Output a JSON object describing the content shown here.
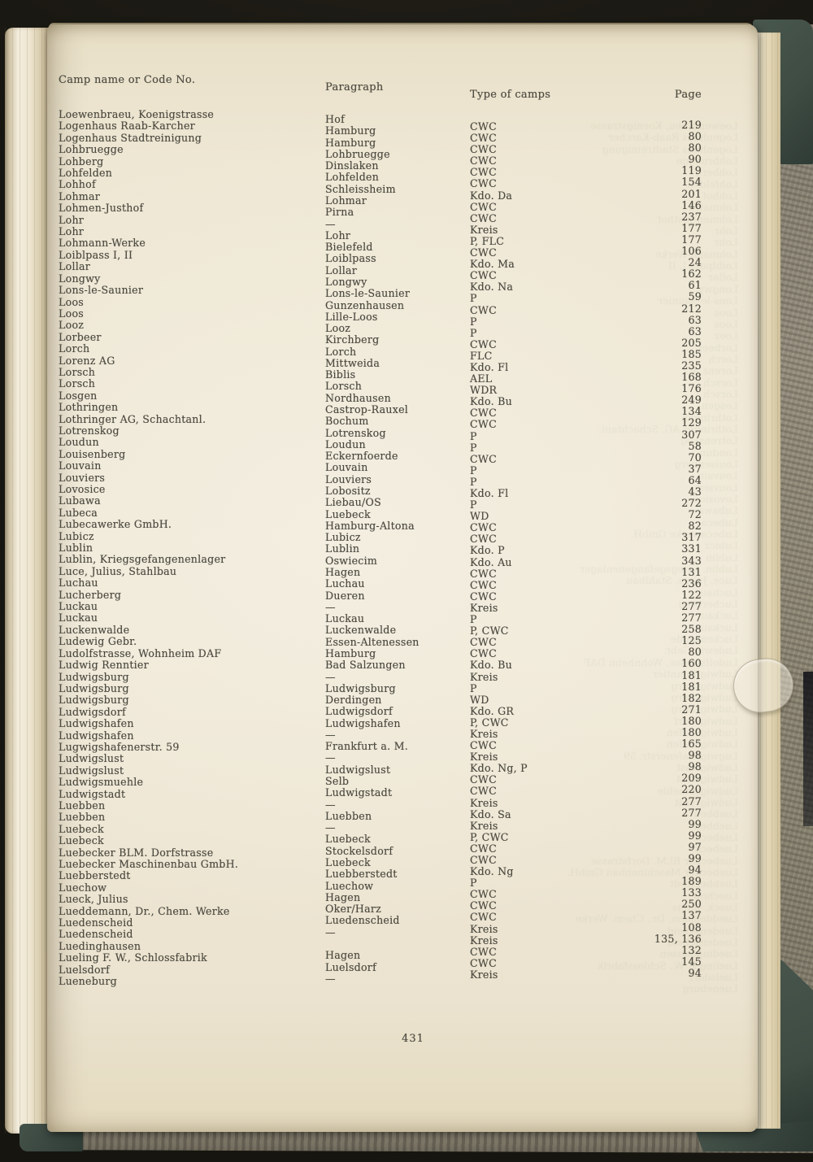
{
  "colors": {
    "background": "#17150f",
    "cover-green": "#3e4c43",
    "board-gray": "#8b8477",
    "paper": "#efe8d6",
    "ink": "#4c4a40"
  },
  "page": {
    "headers": {
      "name": "Camp name or Code No.",
      "paragraph": "Paragraph",
      "type": "Type of camps",
      "page": "Page"
    },
    "page_number": "431",
    "rows": [
      {
        "name": "Loewenbraeu, Koenigstrasse",
        "paragraph": "Hof",
        "type": "CWC",
        "page": "219"
      },
      {
        "name": "Logenhaus Raab-Karcher",
        "paragraph": "Hamburg",
        "type": "CWC",
        "page": "80"
      },
      {
        "name": "Logenhaus Stadtreinigung",
        "paragraph": "Hamburg",
        "type": "CWC",
        "page": "80"
      },
      {
        "name": "Lohbruegge",
        "paragraph": "Lohbruegge",
        "type": "CWC",
        "page": "90"
      },
      {
        "name": "Lohberg",
        "paragraph": "Dinslaken",
        "type": "CWC",
        "page": "119"
      },
      {
        "name": "Lohfelden",
        "paragraph": "Lohfelden",
        "type": "CWC",
        "page": "154"
      },
      {
        "name": "Lohhof",
        "paragraph": "Schleissheim",
        "type": "Kdo. Da",
        "page": "201"
      },
      {
        "name": "Lohmar",
        "paragraph": "Lohmar",
        "type": "CWC",
        "page": "146"
      },
      {
        "name": "Lohmen-Justhof",
        "paragraph": "Pirna",
        "type": "CWC",
        "page": "237"
      },
      {
        "name": "Lohr",
        "paragraph": "—",
        "type": "Kreis",
        "page": "177"
      },
      {
        "name": "Lohr",
        "paragraph": "Lohr",
        "type": "P, FLC",
        "page": "177"
      },
      {
        "name": "Lohmann-Werke",
        "paragraph": "Bielefeld",
        "type": "CWC",
        "page": "106"
      },
      {
        "name": "Loiblpass I, II",
        "paragraph": "Loiblpass",
        "type": "Kdo. Ma",
        "page": "24"
      },
      {
        "name": "Lollar",
        "paragraph": "Lollar",
        "type": "CWC",
        "page": "162"
      },
      {
        "name": "Longwy",
        "paragraph": "Longwy",
        "type": "Kdo. Na",
        "page": "61"
      },
      {
        "name": "Lons-le-Saunier",
        "paragraph": "Lons-le-Saunier",
        "type": "P",
        "page": "59"
      },
      {
        "name": "Loos",
        "paragraph": "Gunzenhausen",
        "type": "CWC",
        "page": "212"
      },
      {
        "name": "Loos",
        "paragraph": "Lille-Loos",
        "type": "P",
        "page": "63"
      },
      {
        "name": "Looz",
        "paragraph": "Looz",
        "type": "P",
        "page": "63"
      },
      {
        "name": "Lorbeer",
        "paragraph": "Kirchberg",
        "type": "CWC",
        "page": "205"
      },
      {
        "name": "Lorch",
        "paragraph": "Lorch",
        "type": "FLC",
        "page": "185"
      },
      {
        "name": "Lorenz AG",
        "paragraph": "Mittweida",
        "type": "Kdo. Fl",
        "page": "235"
      },
      {
        "name": "Lorsch",
        "paragraph": "Biblis",
        "type": "AEL",
        "page": "168"
      },
      {
        "name": "Lorsch",
        "paragraph": "Lorsch",
        "type": "WDR",
        "page": "176"
      },
      {
        "name": "Losgen",
        "paragraph": "Nordhausen",
        "type": "Kdo. Bu",
        "page": "249"
      },
      {
        "name": "Lothringen",
        "paragraph": "Castrop-Rauxel",
        "type": "CWC",
        "page": "134"
      },
      {
        "name": "Lothringer AG, Schachtanl.",
        "paragraph": "Bochum",
        "type": "CWC",
        "page": "129"
      },
      {
        "name": "Lotrenskog",
        "paragraph": "Lotrenskog",
        "type": "P",
        "page": "307"
      },
      {
        "name": "Loudun",
        "paragraph": "Loudun",
        "type": "P",
        "page": "58"
      },
      {
        "name": "Louisenberg",
        "paragraph": "Eckernfoerde",
        "type": "CWC",
        "page": "70"
      },
      {
        "name": "Louvain",
        "paragraph": "Louvain",
        "type": "P",
        "page": "37"
      },
      {
        "name": "Louviers",
        "paragraph": "Louviers",
        "type": "P",
        "page": "64"
      },
      {
        "name": "Lovosice",
        "paragraph": "Lobositz",
        "type": "Kdo. Fl",
        "page": "43"
      },
      {
        "name": "Lubawa",
        "paragraph": "Liebau/OS",
        "type": "P",
        "page": "272"
      },
      {
        "name": "Lubeca",
        "paragraph": "Luebeck",
        "type": "WD",
        "page": "72"
      },
      {
        "name": "Lubecawerke GmbH.",
        "paragraph": "Hamburg-Altona",
        "type": "CWC",
        "page": "82"
      },
      {
        "name": "Lubicz",
        "paragraph": "Lubicz",
        "type": "CWC",
        "page": "317"
      },
      {
        "name": "Lublin",
        "paragraph": "Lublin",
        "type": "Kdo. P",
        "page": "331"
      },
      {
        "name": "Lublin, Kriegsgefangenenlager",
        "paragraph": "Oswiecim",
        "type": "Kdo. Au",
        "page": "343"
      },
      {
        "name": "Luce, Julius, Stahlbau",
        "paragraph": "Hagen",
        "type": "CWC",
        "page": "131"
      },
      {
        "name": "Luchau",
        "paragraph": "Luchau",
        "type": "CWC",
        "page": "236"
      },
      {
        "name": "Lucherberg",
        "paragraph": "Dueren",
        "type": "CWC",
        "page": "122"
      },
      {
        "name": "Luckau",
        "paragraph": "—",
        "type": "Kreis",
        "page": "277"
      },
      {
        "name": "Luckau",
        "paragraph": "Luckau",
        "type": "P",
        "page": "277"
      },
      {
        "name": "Luckenwalde",
        "paragraph": "Luckenwalde",
        "type": "P, CWC",
        "page": "258"
      },
      {
        "name": "Ludewig Gebr.",
        "paragraph": "Essen-Altenessen",
        "type": "CWC",
        "page": "125"
      },
      {
        "name": "Ludolfstrasse, Wohnheim DAF",
        "paragraph": "Hamburg",
        "type": "CWC",
        "page": "80"
      },
      {
        "name": "Ludwig Renntier",
        "paragraph": "Bad Salzungen",
        "type": "Kdo. Bu",
        "page": "160"
      },
      {
        "name": "Ludwigsburg",
        "paragraph": "—",
        "type": "Kreis",
        "page": "181"
      },
      {
        "name": "Ludwigsburg",
        "paragraph": "Ludwigsburg",
        "type": "P",
        "page": "181"
      },
      {
        "name": "Ludwigsburg",
        "paragraph": "Derdingen",
        "type": "WD",
        "page": "182"
      },
      {
        "name": "Ludwigsdorf",
        "paragraph": "Ludwigsdorf",
        "type": "Kdo. GR",
        "page": "271"
      },
      {
        "name": "Ludwigshafen",
        "paragraph": "Ludwigshafen",
        "type": "P, CWC",
        "page": "180"
      },
      {
        "name": "Ludwigshafen",
        "paragraph": "—",
        "type": "Kreis",
        "page": "180"
      },
      {
        "name": "Lugwigshafenerstr. 59",
        "paragraph": "Frankfurt a. M.",
        "type": "CWC",
        "page": "165"
      },
      {
        "name": "Ludwigslust",
        "paragraph": "—",
        "type": "Kreis",
        "page": "98"
      },
      {
        "name": "Ludwigslust",
        "paragraph": "Ludwigslust",
        "type": "Kdo. Ng, P",
        "page": "98"
      },
      {
        "name": "Ludwigsmuehle",
        "paragraph": "Selb",
        "type": "CWC",
        "page": "209"
      },
      {
        "name": "Ludwigstadt",
        "paragraph": "Ludwigstadt",
        "type": "CWC",
        "page": "220"
      },
      {
        "name": "Luebben",
        "paragraph": "—",
        "type": "Kreis",
        "page": "277"
      },
      {
        "name": "Luebben",
        "paragraph": "Luebben",
        "type": "Kdo. Sa",
        "page": "277"
      },
      {
        "name": "Luebeck",
        "paragraph": "—",
        "type": "Kreis",
        "page": "99"
      },
      {
        "name": "Luebeck",
        "paragraph": "Luebeck",
        "type": "P, CWC",
        "page": "99"
      },
      {
        "name": "Luebecker BLM. Dorfstrasse",
        "paragraph": "Stockelsdorf",
        "type": "CWC",
        "page": "97"
      },
      {
        "name": "Luebecker Maschinenbau GmbH.",
        "paragraph": "Luebeck",
        "type": "CWC",
        "page": "99"
      },
      {
        "name": "Luebberstedt",
        "paragraph": "Luebberstedt",
        "type": "Kdo. Ng",
        "page": "94"
      },
      {
        "name": "Luechow",
        "paragraph": "Luechow",
        "type": "P",
        "page": "189"
      },
      {
        "name": "Lueck, Julius",
        "paragraph": "Hagen",
        "type": "CWC",
        "page": "133"
      },
      {
        "name": "Lueddemann, Dr., Chem. Werke",
        "paragraph": "Oker/Harz",
        "type": "CWC",
        "page": "250"
      },
      {
        "name": "Luedenscheid",
        "paragraph": "Luedenscheid",
        "type": "CWC",
        "page": "137"
      },
      {
        "name": "Luedenscheid",
        "paragraph": "—",
        "type": "Kreis",
        "page": "108"
      },
      {
        "name": "Luedinghausen",
        "paragraph": "",
        "type": "Kreis",
        "page": "135, 136"
      },
      {
        "name": "Lueling F. W., Schlossfabrik",
        "paragraph": "Hagen",
        "type": "CWC",
        "page": "132"
      },
      {
        "name": "Luelsdorf",
        "paragraph": "Luelsdorf",
        "type": "CWC",
        "page": "145"
      },
      {
        "name": "Lueneburg",
        "paragraph": "—",
        "type": "Kreis",
        "page": "94"
      }
    ]
  }
}
